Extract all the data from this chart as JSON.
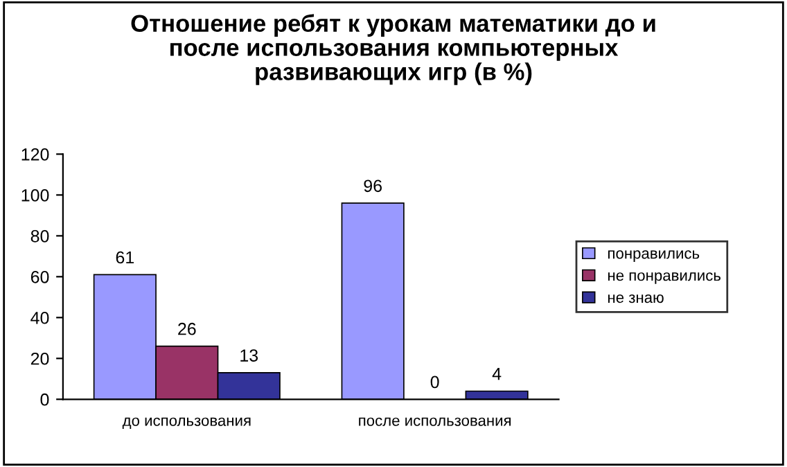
{
  "chart_data": {
    "type": "bar",
    "title": "Отношение ребят к урокам математики до и\nпосле использования компьютерных\nразвивающих игр (в %)",
    "categories": [
      "до использования",
      "после использования"
    ],
    "series": [
      {
        "name": "понравились",
        "color": "#9999ff",
        "values": [
          61,
          96
        ]
      },
      {
        "name": "не понравились",
        "color": "#993366",
        "values": [
          26,
          0
        ]
      },
      {
        "name": "не знаю",
        "color": "#333399",
        "values": [
          13,
          4
        ]
      }
    ],
    "ylim": [
      0,
      120
    ],
    "yticks": [
      0,
      20,
      40,
      60,
      80,
      100,
      120
    ],
    "data_labels": true,
    "legend": "right",
    "grid": false
  }
}
